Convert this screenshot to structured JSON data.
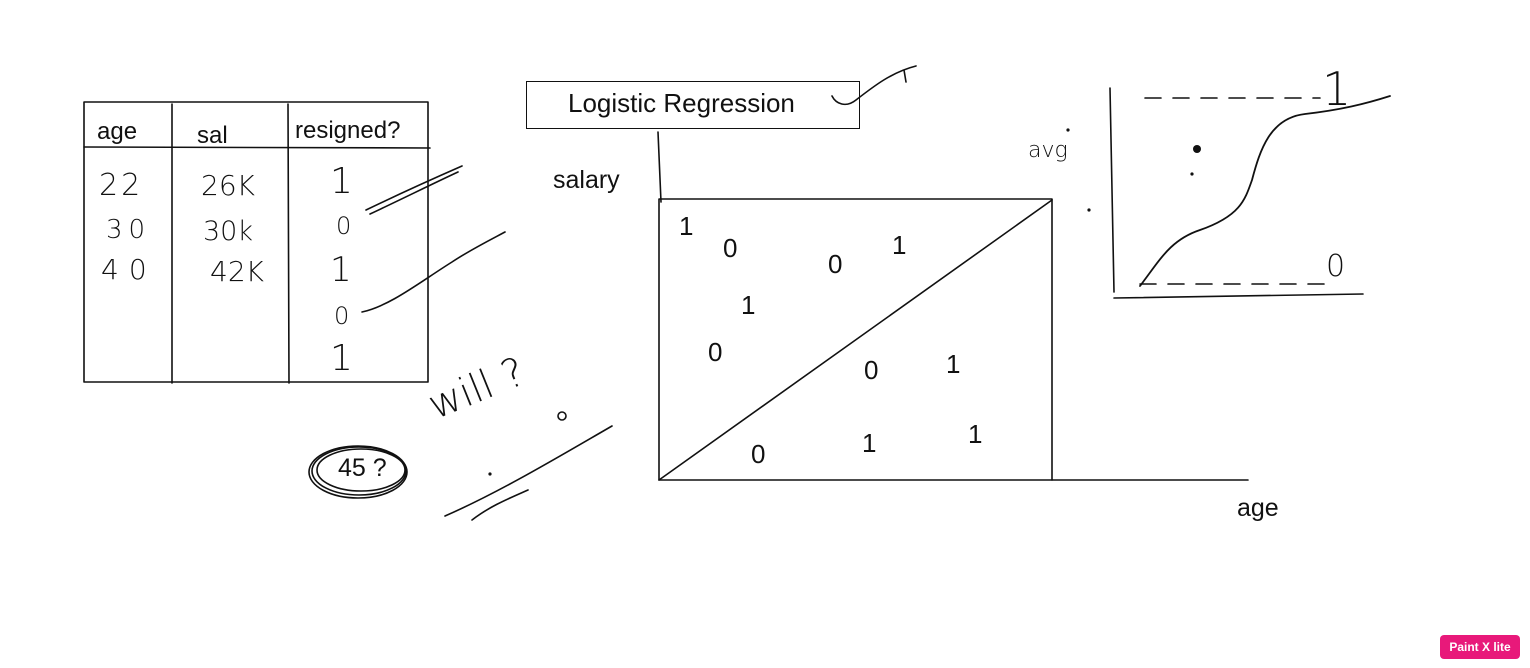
{
  "diagram_title": "Logistic Regression",
  "table": {
    "headers": [
      "age",
      "sal",
      "resigned?"
    ],
    "rows": [
      [
        "22",
        "26K",
        "1"
      ],
      [
        "30",
        "30k",
        "0"
      ],
      [
        "40",
        "42K",
        "1"
      ],
      [
        "",
        "",
        "0"
      ],
      [
        "",
        "",
        "1"
      ]
    ]
  },
  "scatter": {
    "y_label": "salary",
    "x_label": "age",
    "points": [
      "1",
      "0",
      "0",
      "1",
      "1",
      "0",
      "0",
      "1",
      "0",
      "1",
      "1"
    ]
  },
  "question": {
    "value": "45 ?",
    "handwritten": "will ?"
  },
  "sigmoid": {
    "top_label": "1",
    "bottom_label": "0",
    "side_note": "avg"
  },
  "badge": {
    "label": "Paint X lite",
    "color": "#e8197a"
  }
}
